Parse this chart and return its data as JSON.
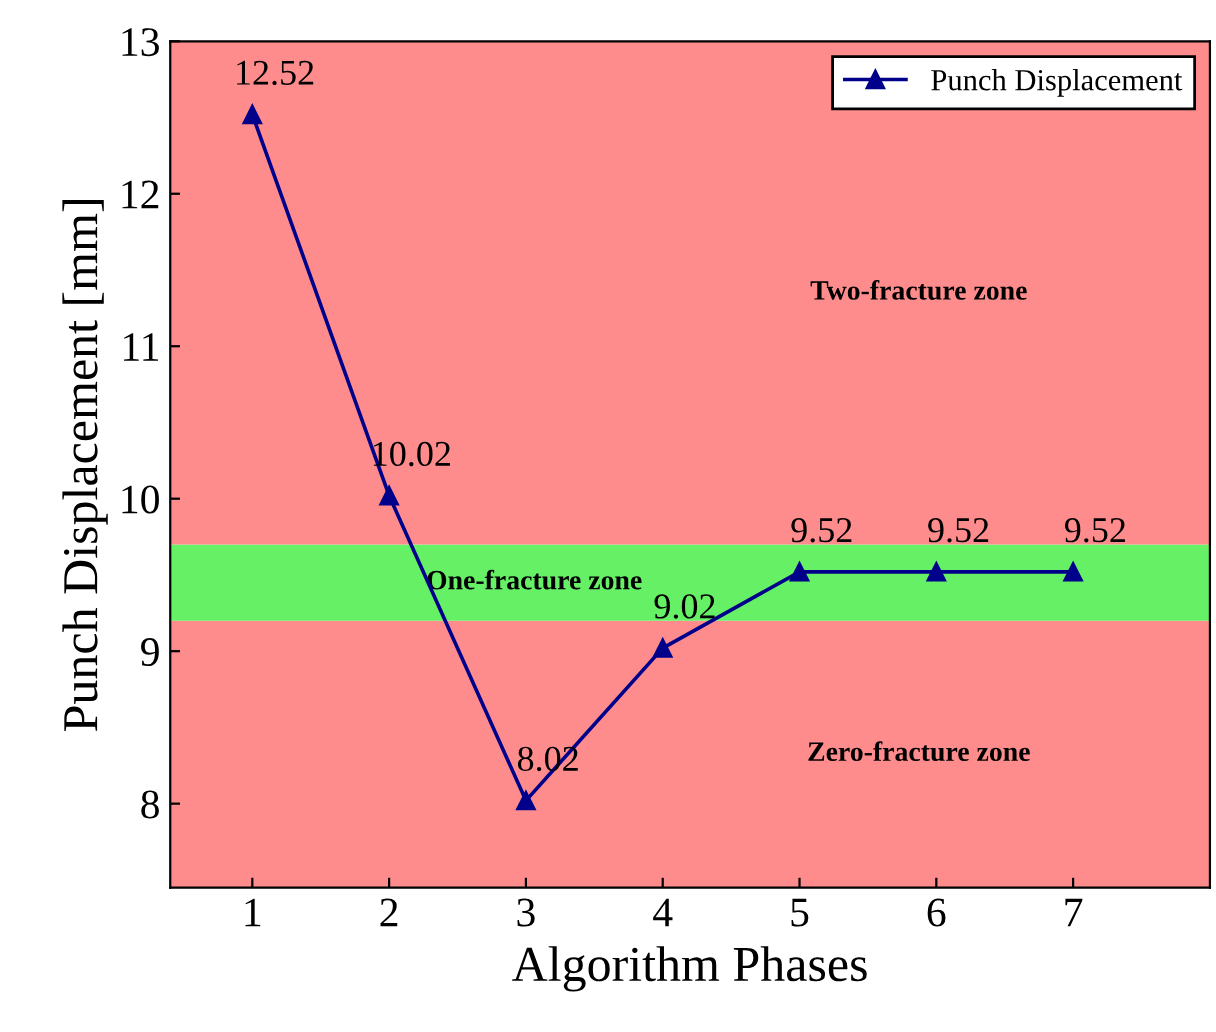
{
  "chart_data": {
    "type": "line",
    "xlabel": "Algorithm Phases",
    "ylabel": "Punch Displacement [mm]",
    "x": [
      1,
      2,
      3,
      4,
      5,
      6,
      7
    ],
    "series": [
      {
        "name": "Punch Displacement",
        "color": "#00008b",
        "values": [
          12.52,
          10.02,
          8.02,
          9.02,
          9.52,
          9.52,
          9.52
        ]
      }
    ],
    "data_labels": true,
    "marker": "triangle",
    "line_style": "solid",
    "legend": "top right",
    "grid": false,
    "xlim": [
      0.4,
      8.0
    ],
    "ylim": [
      7.45,
      13
    ],
    "xticks": [
      1,
      2,
      3,
      4,
      5,
      6,
      7
    ],
    "yticks": [
      8,
      9,
      10,
      11,
      12,
      13
    ],
    "bands": [
      {
        "axis": "y",
        "from": 7.45,
        "to": 9.2,
        "label": "Zero-fracture zone",
        "color": "#ff8c8c"
      },
      {
        "axis": "y",
        "from": 9.2,
        "to": 9.7,
        "label": "One-fracture zone",
        "color": "#66f066"
      },
      {
        "axis": "y",
        "from": 9.7,
        "to": 13,
        "label": "Two-fracture zone",
        "color": "#ff8c8c"
      }
    ]
  }
}
